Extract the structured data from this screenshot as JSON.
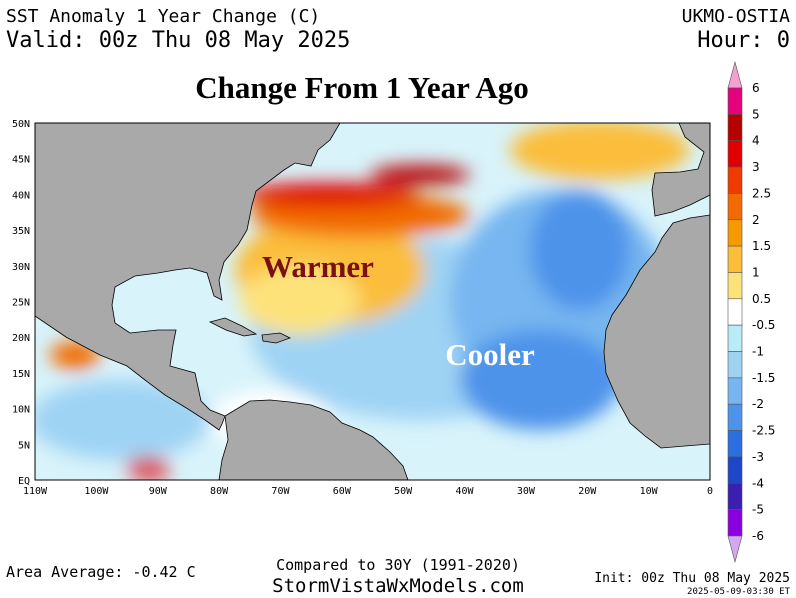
{
  "header": {
    "title": "SST Anomaly 1 Year Change (C)",
    "valid": "Valid: 00z Thu 08 May 2025",
    "source": "UKMO-OSTIA",
    "hour": "Hour: 0"
  },
  "map_title": "Change From 1 Year Ago",
  "annotations": {
    "warm": "Warmer",
    "cool": "Cooler"
  },
  "lat_labels": [
    "50N",
    "45N",
    "40N",
    "35N",
    "30N",
    "25N",
    "20N",
    "15N",
    "10N",
    "5N",
    "EQ"
  ],
  "lon_labels": [
    "110W",
    "100W",
    "90W",
    "80W",
    "70W",
    "60W",
    "50W",
    "40W",
    "30W",
    "20W",
    "10W",
    "0"
  ],
  "colorbar": {
    "labels": [
      "6",
      "5",
      "4",
      "3",
      "2.5",
      "2",
      "1.5",
      "1",
      "0.5",
      "-0.5",
      "-1",
      "-1.5",
      "-2",
      "-2.5",
      "-3",
      "-4",
      "-5",
      "-6"
    ],
    "colors": [
      "#e6007e",
      "#b50000",
      "#e00000",
      "#ef3a00",
      "#f26a00",
      "#f79a00",
      "#fbbd3a",
      "#fde27a",
      "#ffffff",
      "#b9ecf6",
      "#9fd3f4",
      "#77b6f0",
      "#4e93ea",
      "#2a6fe0",
      "#1d46c8",
      "#3a1fb0",
      "#8a00e0"
    ],
    "over_color": "#f4a0d0",
    "under_color": "#d3a8f0"
  },
  "footer": {
    "area_average": "Area Average: -0.42 C",
    "compared": "Compared to 30Y (1991-2020)",
    "site": "StormVistaWxModels.com",
    "init": "Init: 00z Thu 08 May 2025",
    "stamp": "2025-05-09-03:30 ET"
  }
}
